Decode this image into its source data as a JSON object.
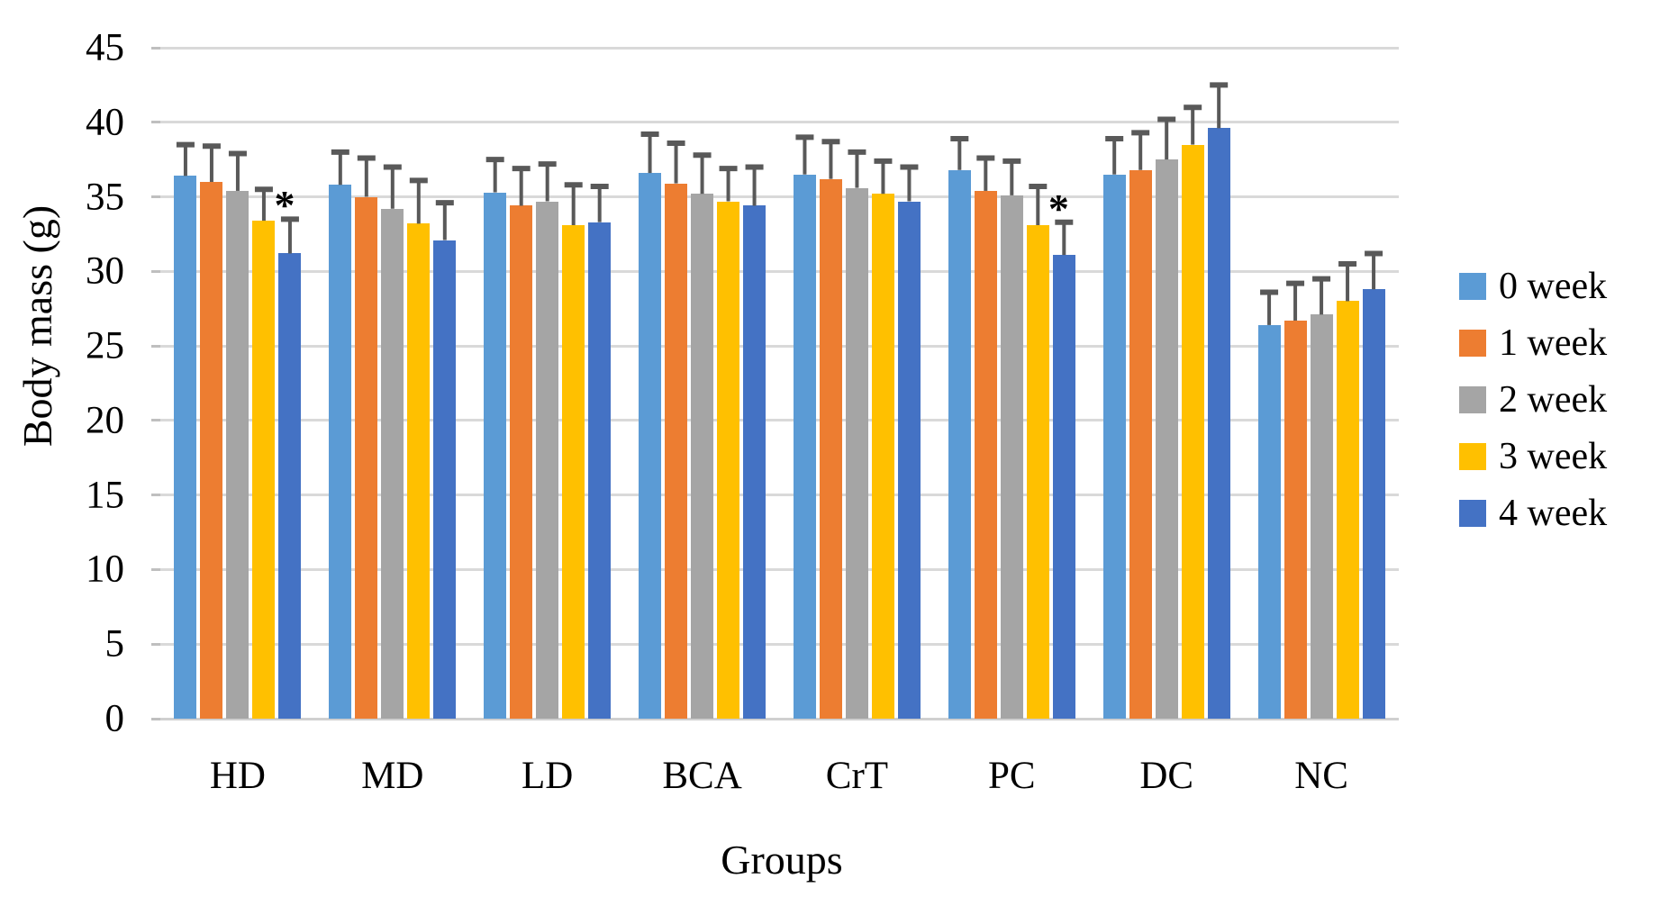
{
  "figure": {
    "description": "Grouped bar chart of body mass by group and week with SD error bars",
    "significance_symbol": "*"
  },
  "chart_data": {
    "type": "bar",
    "title": "",
    "xlabel": "Groups",
    "ylabel": "Body mass (g)",
    "ylim": [
      0,
      45
    ],
    "yticks": [
      0,
      5,
      10,
      15,
      20,
      25,
      30,
      35,
      40,
      45
    ],
    "grid": "horizontal",
    "legend_position": "right",
    "categories": [
      "HD",
      "MD",
      "LD",
      "BCA",
      "CrT",
      "PC",
      "DC",
      "NC"
    ],
    "series": [
      {
        "name": "0 week",
        "color": "#5B9BD5",
        "values": [
          36.4,
          35.8,
          35.3,
          36.6,
          36.5,
          36.8,
          36.5,
          26.4
        ],
        "errors": [
          2.1,
          2.2,
          2.2,
          2.6,
          2.5,
          2.1,
          2.4,
          2.2
        ]
      },
      {
        "name": "1 week",
        "color": "#ED7D31",
        "values": [
          36.0,
          35.0,
          34.4,
          35.9,
          36.2,
          35.4,
          36.8,
          26.7
        ],
        "errors": [
          2.4,
          2.6,
          2.5,
          2.7,
          2.5,
          2.2,
          2.5,
          2.5
        ]
      },
      {
        "name": "2 week",
        "color": "#A5A5A5",
        "values": [
          35.4,
          34.2,
          34.7,
          35.2,
          35.6,
          35.1,
          37.5,
          27.1
        ],
        "errors": [
          2.5,
          2.8,
          2.5,
          2.6,
          2.4,
          2.3,
          2.7,
          2.4
        ]
      },
      {
        "name": "3 week",
        "color": "#FFC000",
        "values": [
          33.4,
          33.2,
          33.1,
          34.7,
          35.2,
          33.1,
          38.5,
          28.0
        ],
        "errors": [
          2.1,
          2.9,
          2.7,
          2.2,
          2.2,
          2.6,
          2.5,
          2.5
        ]
      },
      {
        "name": "4 week",
        "color": "#4472C4",
        "values": [
          31.2,
          32.1,
          33.3,
          34.4,
          34.7,
          31.1,
          39.6,
          28.8
        ],
        "errors": [
          2.3,
          2.5,
          2.4,
          2.6,
          2.3,
          2.2,
          2.9,
          2.4
        ]
      }
    ],
    "significance_marks": [
      {
        "category": "HD",
        "series": "4 week",
        "symbol": "*"
      },
      {
        "category": "PC",
        "series": "4 week",
        "symbol": "*"
      }
    ],
    "error_bar_color": "#595959",
    "gridline_color": "#D9D9D9",
    "text_color": "#000000"
  }
}
